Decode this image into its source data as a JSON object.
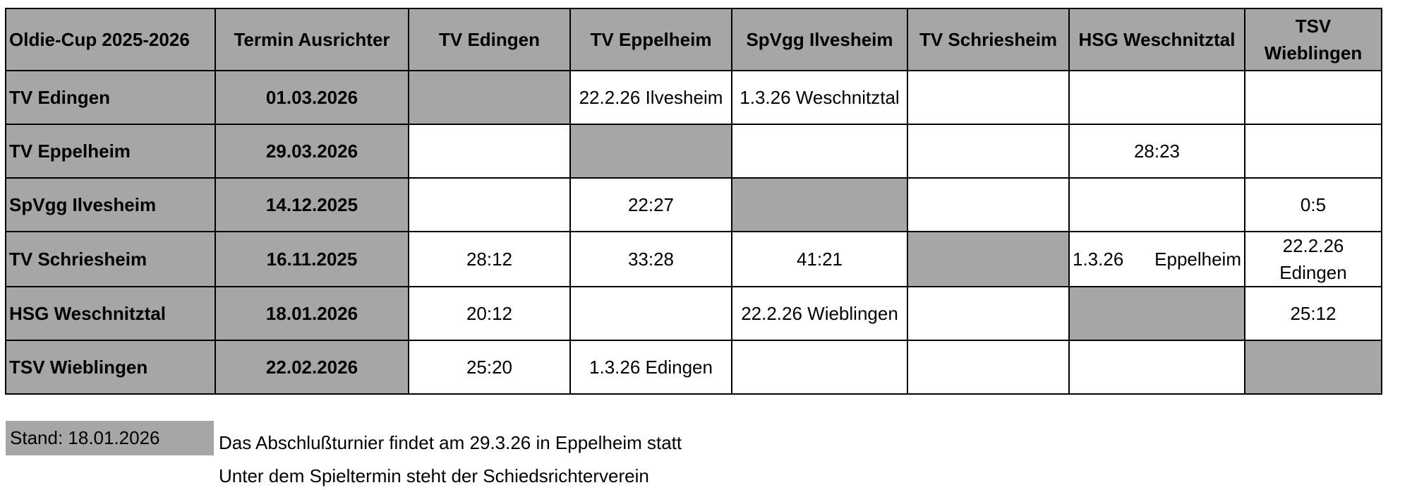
{
  "table": {
    "header": [
      "Oldie-Cup 2025-2026",
      "Termin Ausrichter",
      "TV Edingen",
      "TV Eppelheim",
      "SpVgg Ilvesheim",
      "TV Schriesheim",
      "HSG Weschnitztal",
      "TSV Wieblingen"
    ],
    "rows": [
      {
        "team": "TV Edingen",
        "date": "01.03.2026",
        "cells": [
          "",
          "22.2.26 Ilvesheim",
          "1.3.26 Weschnitztal",
          "",
          "",
          ""
        ]
      },
      {
        "team": "TV Eppelheim",
        "date": "29.03.2026",
        "cells": [
          "",
          "",
          "",
          "",
          "28:23",
          ""
        ]
      },
      {
        "team": "SpVgg Ilvesheim",
        "date": "14.12.2025",
        "cells": [
          "",
          "22:27",
          "",
          "",
          "",
          "0:5"
        ]
      },
      {
        "team": "TV Schriesheim",
        "date": "16.11.2025",
        "cells": [
          "28:12",
          "33:28",
          "41:21",
          "",
          "1.3.26 Eppelheim",
          "22.2.26 Edingen"
        ]
      },
      {
        "team": "HSG Weschnitztal",
        "date": "18.01.2026",
        "cells": [
          "20:12",
          "",
          "22.2.26 Wieblingen",
          "",
          "",
          "25:12"
        ]
      },
      {
        "team": "TSV Wieblingen",
        "date": "22.02.2026",
        "cells": [
          "25:20",
          "1.3.26 Edingen",
          "",
          "",
          "",
          ""
        ]
      }
    ]
  },
  "stand": "Stand: 18.01.2026",
  "notes": [
    "Das Abschlußturnier findet am 29.3.26 in Eppelheim statt",
    "Unter dem Spieltermin steht der Schiedsrichterverein"
  ]
}
